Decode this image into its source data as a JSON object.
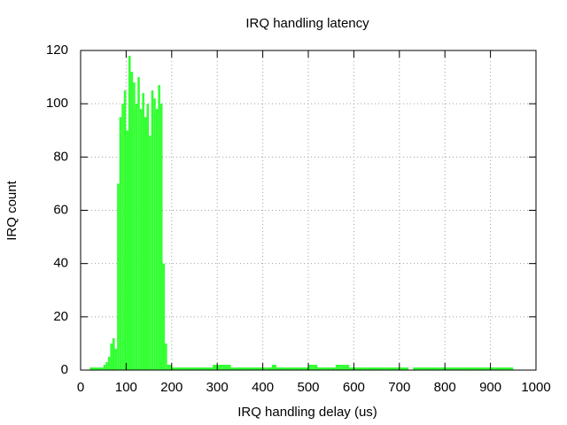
{
  "chart_data": {
    "type": "bar",
    "title": "IRQ handling latency",
    "x_label": "IRQ handling delay (us)",
    "y_label": "IRQ count",
    "x": [
      20,
      30,
      40,
      50,
      55,
      60,
      65,
      70,
      75,
      80,
      85,
      90,
      95,
      100,
      105,
      110,
      115,
      120,
      125,
      130,
      135,
      140,
      145,
      150,
      155,
      160,
      165,
      170,
      175,
      180,
      185,
      190,
      200,
      210,
      220,
      230,
      240,
      250,
      260,
      270,
      280,
      290,
      300,
      310,
      320,
      330,
      340,
      350,
      360,
      370,
      380,
      390,
      400,
      410,
      420,
      430,
      440,
      450,
      460,
      470,
      480,
      490,
      500,
      510,
      520,
      530,
      540,
      550,
      560,
      570,
      580,
      590,
      600,
      610,
      620,
      630,
      640,
      650,
      660,
      670,
      680,
      690,
      700,
      710,
      720,
      730,
      740,
      750,
      760,
      770,
      780,
      790,
      800,
      810,
      820,
      830,
      840,
      850,
      860,
      870,
      880,
      890,
      900,
      910,
      920,
      930,
      940
    ],
    "values": [
      1,
      1,
      1,
      2,
      3,
      5,
      10,
      12,
      8,
      70,
      95,
      100,
      105,
      90,
      118,
      112,
      108,
      100,
      110,
      98,
      104,
      95,
      100,
      88,
      105,
      102,
      98,
      107,
      100,
      40,
      10,
      2,
      1,
      1,
      1,
      1,
      1,
      1,
      1,
      1,
      1,
      2,
      2,
      2,
      2,
      1,
      1,
      1,
      1,
      1,
      1,
      1,
      1,
      1,
      2,
      1,
      1,
      1,
      1,
      1,
      1,
      1,
      2,
      2,
      1,
      1,
      1,
      1,
      2,
      2,
      2,
      1,
      1,
      1,
      1,
      1,
      1,
      1,
      1,
      1,
      1,
      1,
      1,
      1,
      0,
      1,
      1,
      1,
      1,
      1,
      1,
      1,
      1,
      1,
      1,
      1,
      1,
      1,
      1,
      1,
      1,
      1,
      1,
      1,
      1,
      1,
      1
    ],
    "color": "#33ff33",
    "xlim": [
      0,
      1000
    ],
    "xticks": [
      0,
      100,
      200,
      300,
      400,
      500,
      600,
      700,
      800,
      900,
      1000
    ],
    "ylim": [
      0,
      120
    ],
    "yticks": [
      0,
      20,
      40,
      60,
      80,
      100,
      120
    ],
    "grid": true
  }
}
